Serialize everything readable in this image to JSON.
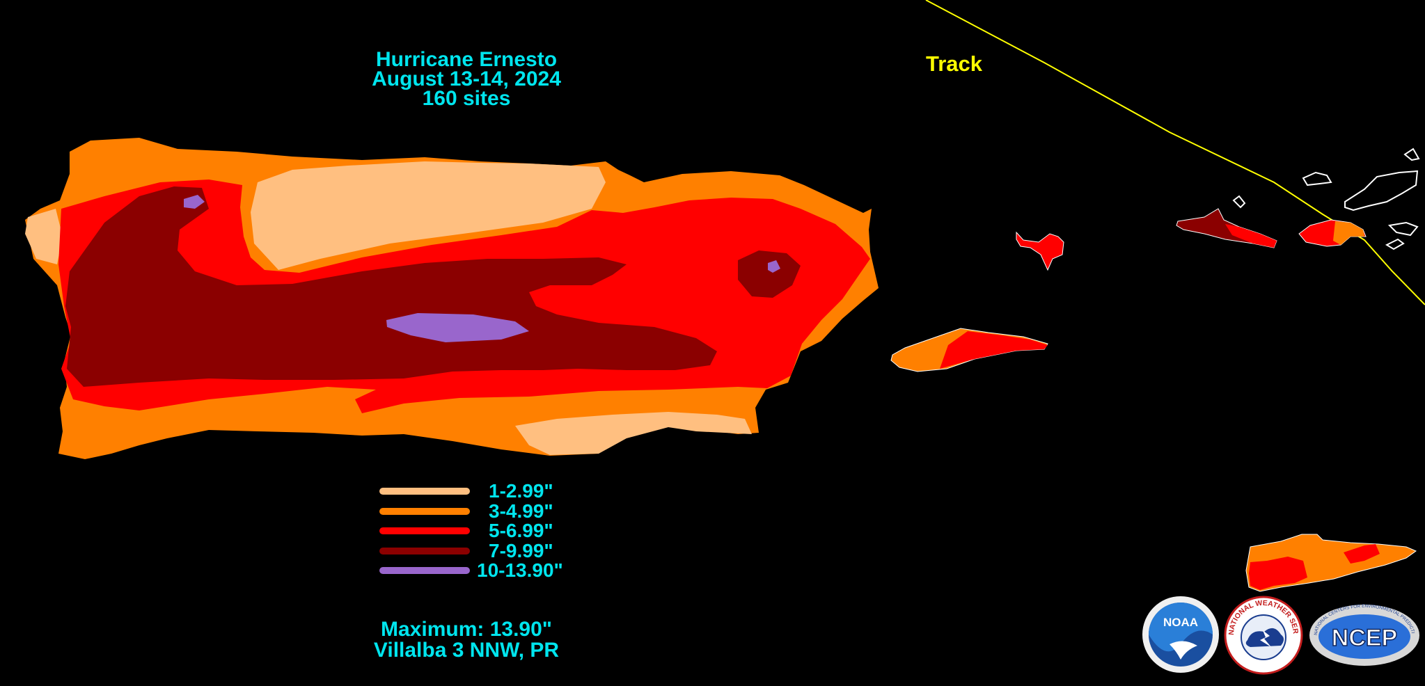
{
  "title": {
    "line1": "Hurricane Ernesto",
    "line2": "August 13-14, 2024",
    "line3": "160 sites"
  },
  "track": {
    "label": "Track",
    "color": "#ffff00"
  },
  "legend": {
    "items": [
      {
        "label": "1-2.99\"",
        "color": "#ffbf80"
      },
      {
        "label": "3-4.99\"",
        "color": "#ff8000"
      },
      {
        "label": "5-6.99\"",
        "color": "#ff0000"
      },
      {
        "label": "7-9.99\"",
        "color": "#8b0000"
      },
      {
        "label": "10-13.90\"",
        "color": "#9966cc"
      }
    ]
  },
  "maximum": {
    "line1": "Maximum: 13.90\"",
    "line2": "Villalba 3 NNW, PR"
  },
  "logos": {
    "noaa": "NOAA",
    "nws_ring": "NATIONAL WEATHER SERVICE",
    "ncep": "NCEP",
    "ncep_ring": "NATIONAL CENTERS FOR ENVIRONMENTAL PREDICTION"
  },
  "colors": {
    "background": "#000000",
    "text": "#00e5ee",
    "outline": "#ffffff"
  }
}
